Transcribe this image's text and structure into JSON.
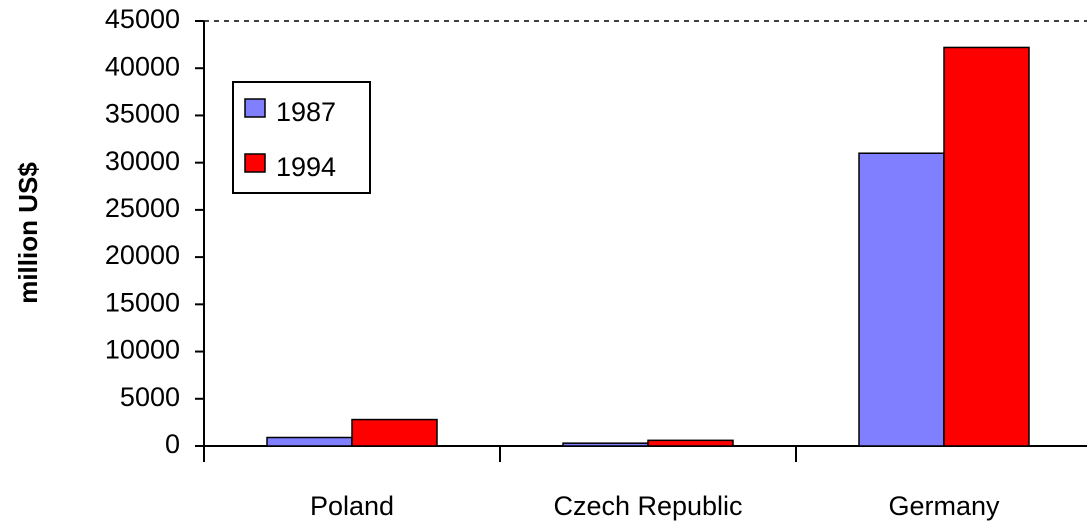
{
  "chart_data": {
    "type": "bar",
    "y_label": "million US$",
    "categories": [
      "Poland",
      "Czech Republic",
      "Germany"
    ],
    "series": [
      {
        "name": "1987",
        "color": "#7f7fff",
        "values": [
          900,
          300,
          31000
        ]
      },
      {
        "name": "1994",
        "color": "#ff0000",
        "values": [
          2800,
          600,
          42200
        ]
      }
    ],
    "ylim": [
      0,
      45000
    ],
    "yticks": [
      0,
      5000,
      10000,
      15000,
      20000,
      25000,
      30000,
      35000,
      40000,
      45000
    ],
    "legend": "upper left"
  }
}
